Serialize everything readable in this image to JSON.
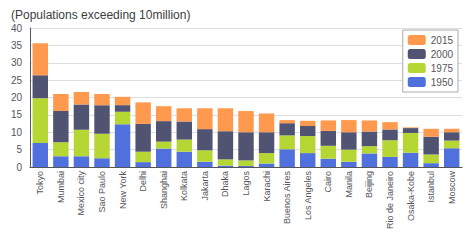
{
  "chart_data": {
    "type": "bar",
    "title": "(Populations exceeding 10million)",
    "categories": [
      "Tokyo",
      "Mumbai",
      "Mexico city",
      "Sao Paulo",
      "New York",
      "Delhi",
      "Shanghai",
      "Kolkata",
      "Jakarta",
      "Dhaka",
      "Lagos",
      "Karachi",
      "Buenos Aires",
      "Los Angeles",
      "Cairo",
      "Manila",
      "Beijing",
      "Rio de Janeiro",
      "Osaka-Kobe",
      "Istanbul",
      "Moscow"
    ],
    "series": [
      {
        "name": "1950",
        "values": [
          6.9,
          3.1,
          3.1,
          2.5,
          12.3,
          1.4,
          5.3,
          4.4,
          1.5,
          0.4,
          0.3,
          1.0,
          5.1,
          4.0,
          2.4,
          1.5,
          3.9,
          2.9,
          4.1,
          1.1,
          5.4
        ]
      },
      {
        "name": "1975",
        "values": [
          12.9,
          4.0,
          7.6,
          7.1,
          3.6,
          3.0,
          2.0,
          3.5,
          3.3,
          1.8,
          1.6,
          3.0,
          4.0,
          4.9,
          3.7,
          3.5,
          2.1,
          4.8,
          5.7,
          2.5,
          2.2
        ]
      },
      {
        "name": "2000",
        "values": [
          6.6,
          9.0,
          7.3,
          8.2,
          1.9,
          8.0,
          5.9,
          5.2,
          6.1,
          8.1,
          8.1,
          6.0,
          3.5,
          2.9,
          4.3,
          5.0,
          4.2,
          3.1,
          1.4,
          5.1,
          2.4
        ]
      },
      {
        "name": "2015",
        "values": [
          9.2,
          4.9,
          3.6,
          3.2,
          2.4,
          6.2,
          4.3,
          3.8,
          6.0,
          6.6,
          6.1,
          5.4,
          0.9,
          1.5,
          3.0,
          3.5,
          3.2,
          2.1,
          0.2,
          2.3,
          1.0
        ]
      }
    ],
    "stacked": true,
    "ylim": [
      0,
      40
    ],
    "yticks": [
      0,
      5,
      10,
      15,
      20,
      25,
      30,
      35,
      40
    ],
    "grid": true,
    "legend": "upper right"
  }
}
